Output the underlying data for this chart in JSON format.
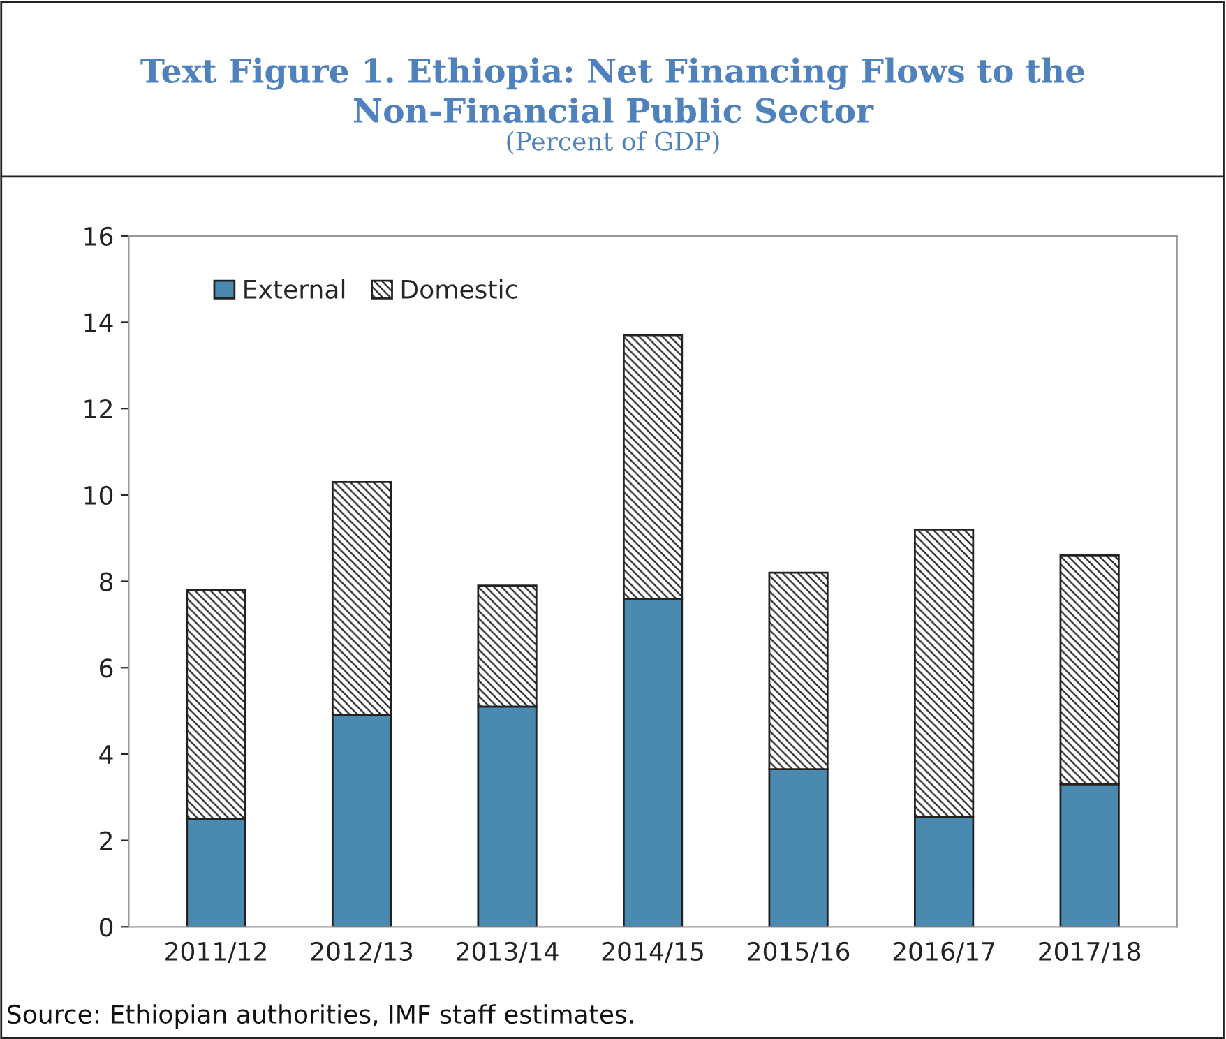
{
  "chart_data": {
    "type": "bar",
    "title": "Text Figure 1. Ethiopia: Net Financing Flows to the\nNon-Financial Public Sector",
    "subtitle": "(Percent of GDP)",
    "categories": [
      "2011/12",
      "2012/13",
      "2013/14",
      "2014/15",
      "2015/16",
      "2016/17",
      "2017/18"
    ],
    "stacked": true,
    "series": [
      {
        "name": "External",
        "color": "#4a8ab0",
        "values": [
          2.5,
          4.9,
          5.1,
          7.6,
          3.65,
          2.55,
          3.3
        ]
      },
      {
        "name": "Domestic",
        "color": "#222222",
        "values": [
          5.3,
          5.4,
          2.8,
          6.1,
          4.55,
          6.65,
          5.3
        ]
      }
    ],
    "ylim": [
      0,
      16
    ],
    "yticks": [
      0,
      2,
      4,
      6,
      8,
      10,
      12,
      14,
      16
    ],
    "grid": false,
    "legend": "top left",
    "annotations": [
      "Source: Ethiopian authorities, IMF staff estimates."
    ]
  }
}
